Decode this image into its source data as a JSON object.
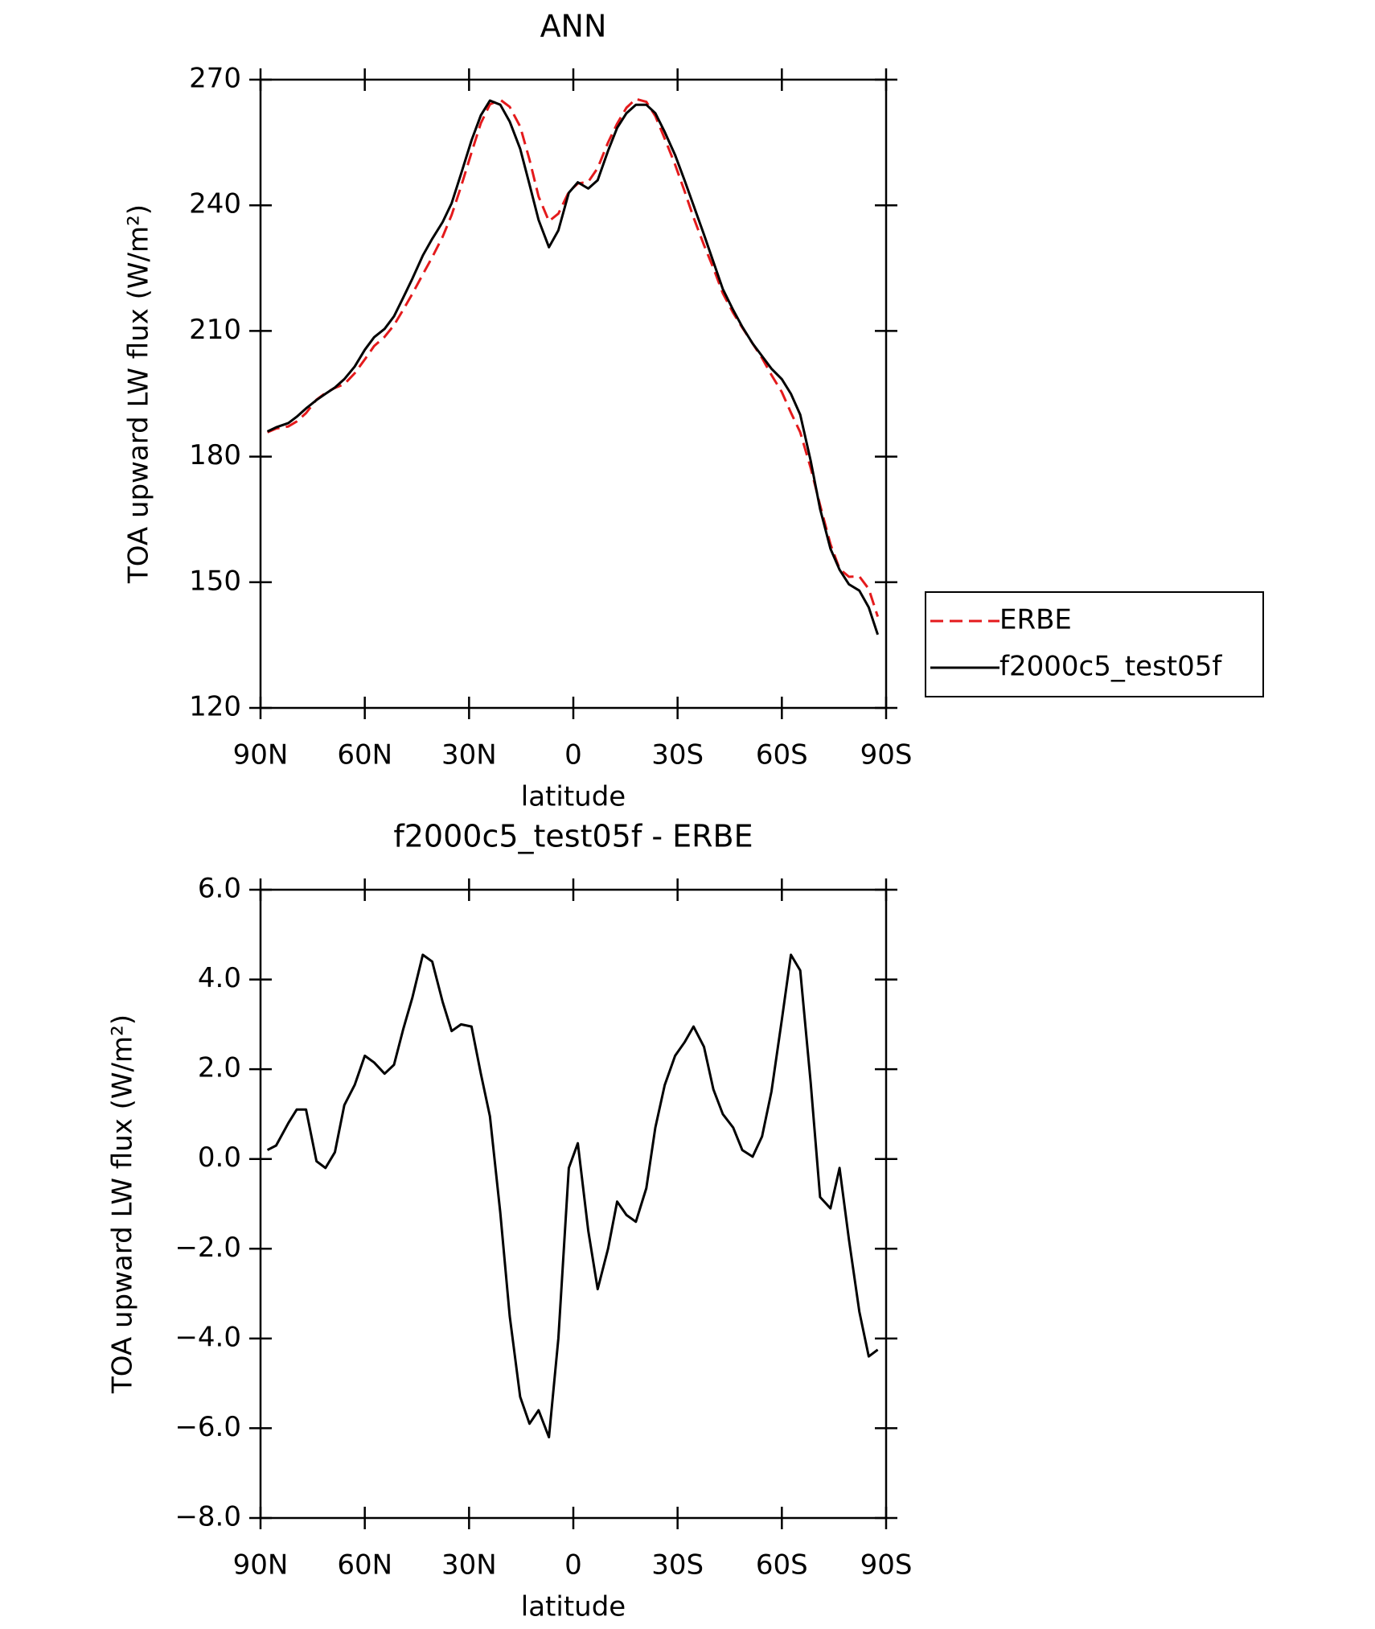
{
  "chart_data": [
    {
      "type": "line",
      "title": "ANN",
      "xlabel": "latitude",
      "ylabel": "TOA upward LW flux (W/m²)",
      "x": [
        88,
        85.5,
        82,
        79.6,
        76.9,
        73.9,
        71.3,
        68.6,
        65.9,
        62.9,
        60,
        57.3,
        54.3,
        51.6,
        48.9,
        46.3,
        43.3,
        40.6,
        37.6,
        35,
        32.3,
        29.3,
        26.6,
        24,
        21,
        18.3,
        15.3,
        12.6,
        10,
        7,
        4.3,
        1.3,
        -1.3,
        -4.3,
        -7,
        -10,
        -12.6,
        -15.3,
        -18,
        -21,
        -23.6,
        -26.3,
        -29.3,
        -32,
        -34.6,
        -37.6,
        -40.3,
        -43,
        -46,
        -48.6,
        -51.6,
        -54.3,
        -57,
        -60,
        -62.6,
        -65.3,
        -68.3,
        -71,
        -74,
        -76.6,
        -79.3,
        -82.3,
        -85,
        -87.6
      ],
      "series": [
        {
          "name": "ERBE",
          "color": "#e41a1c",
          "dash": "dashed",
          "values": [
            185.8,
            186.7,
            187.2,
            188.4,
            190.4,
            193.6,
            195.2,
            196.4,
            197.3,
            199.9,
            203.2,
            206.4,
            208.6,
            211.4,
            215.1,
            218.9,
            223.5,
            227.6,
            232.5,
            237.7,
            244.5,
            252.6,
            259.6,
            264.1,
            265.2,
            263.5,
            258.8,
            250.9,
            242.1,
            236.2,
            238,
            243.2,
            245.2,
            245.6,
            248.9,
            255,
            259.5,
            263.3,
            265.4,
            264.7,
            261.3,
            255.9,
            249.7,
            243.4,
            237.1,
            230.5,
            225,
            219,
            214.3,
            210.8,
            207,
            203.5,
            199.5,
            195.4,
            190.5,
            185.8,
            177.3,
            168.4,
            159.1,
            153.2,
            151.3,
            151.4,
            148.4,
            141.8
          ]
        },
        {
          "name": "f2000c5_test05f",
          "color": "#000000",
          "dash": "solid",
          "values": [
            186,
            187,
            188,
            189.5,
            191.5,
            193.5,
            195,
            196.5,
            198.5,
            201.5,
            205.5,
            208.5,
            210.5,
            213.5,
            218,
            222.5,
            228,
            232,
            236,
            240.5,
            247.5,
            255.5,
            261.5,
            265,
            264,
            260,
            253.5,
            245,
            236.5,
            230,
            234,
            243,
            245.5,
            244,
            246,
            253,
            258.5,
            262,
            264,
            264,
            262,
            257.5,
            252,
            246,
            240,
            233,
            226.5,
            220,
            215,
            211,
            207,
            204,
            201,
            198.5,
            195,
            190,
            179,
            167.5,
            158,
            153,
            149.5,
            148,
            144,
            137.5
          ]
        }
      ],
      "xlim": [
        90,
        -90
      ],
      "xticks": [
        {
          "value": 90,
          "label": "90N"
        },
        {
          "value": 60,
          "label": "60N"
        },
        {
          "value": 30,
          "label": "30N"
        },
        0,
        {
          "value": -30,
          "label": "30S"
        },
        {
          "value": -60,
          "label": "60S"
        },
        {
          "value": -90,
          "label": "90S"
        }
      ],
      "ylim": [
        120,
        270
      ],
      "yticks": [
        120,
        150,
        180,
        210,
        240,
        270
      ],
      "legend": "right"
    },
    {
      "type": "line",
      "title": "f2000c5_test05f - ERBE",
      "xlabel": "latitude",
      "ylabel": "TOA upward LW flux (W/m²)",
      "x": [
        88,
        85.5,
        82,
        79.6,
        76.9,
        73.9,
        71.3,
        68.6,
        65.9,
        62.9,
        60,
        57.3,
        54.3,
        51.6,
        48.9,
        46.3,
        43.3,
        40.6,
        37.6,
        35,
        32.3,
        29.3,
        26.6,
        24,
        21,
        18.3,
        15.3,
        12.6,
        10,
        7,
        4.3,
        1.3,
        -1.3,
        -4.3,
        -7,
        -10,
        -12.6,
        -15.3,
        -18,
        -21,
        -23.6,
        -26.3,
        -29.3,
        -32,
        -34.6,
        -37.6,
        -40.3,
        -43,
        -46,
        -48.6,
        -51.6,
        -54.3,
        -57,
        -60,
        -62.6,
        -65.3,
        -68.3,
        -71,
        -74,
        -76.6,
        -79.3,
        -82.3,
        -85,
        -87.6
      ],
      "color": "#000000",
      "values": [
        0.2,
        0.3,
        0.8,
        1.1,
        1.1,
        -0.05,
        -0.2,
        0.15,
        1.2,
        1.65,
        2.3,
        2.15,
        1.9,
        2.1,
        2.9,
        3.6,
        4.55,
        4.4,
        3.5,
        2.85,
        3,
        2.95,
        1.9,
        0.95,
        -1.2,
        -3.5,
        -5.3,
        -5.9,
        -5.6,
        -6.2,
        -4,
        -0.2,
        0.35,
        -1.6,
        -2.9,
        -2,
        -0.95,
        -1.25,
        -1.4,
        -0.65,
        0.7,
        1.65,
        2.3,
        2.6,
        2.95,
        2.5,
        1.55,
        1,
        0.7,
        0.2,
        0.05,
        0.5,
        1.5,
        3.1,
        4.55,
        4.2,
        1.7,
        -0.85,
        -1.1,
        -0.2,
        -1.8,
        -3.4,
        -4.4,
        -4.25
      ],
      "xlim": [
        90,
        -90
      ],
      "xticks": [
        {
          "value": 90,
          "label": "90N"
        },
        {
          "value": 60,
          "label": "60N"
        },
        {
          "value": 30,
          "label": "30N"
        },
        0,
        {
          "value": -30,
          "label": "30S"
        },
        {
          "value": -60,
          "label": "60S"
        },
        {
          "value": -90,
          "label": "90S"
        }
      ],
      "ylim": [
        -8,
        6
      ],
      "yticks": [
        {
          "value": -8,
          "label": "−8.0"
        },
        {
          "value": -6,
          "label": "−6.0"
        },
        {
          "value": -4,
          "label": "−4.0"
        },
        {
          "value": -2,
          "label": "−2.0"
        },
        {
          "value": 0,
          "label": "0.0"
        },
        {
          "value": 2,
          "label": "2.0"
        },
        {
          "value": 4,
          "label": "4.0"
        },
        {
          "value": 6,
          "label": "6.0"
        }
      ]
    }
  ]
}
